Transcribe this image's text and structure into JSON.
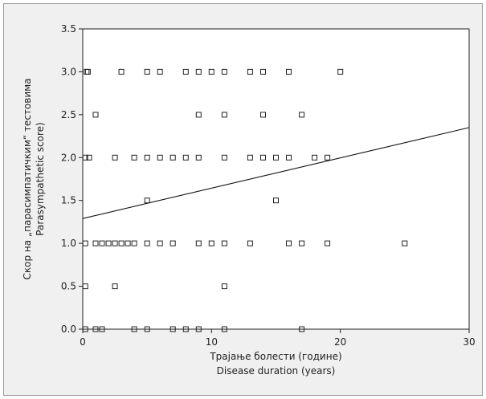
{
  "chart_data": {
    "type": "scatter",
    "title": "",
    "xlabel_lines": [
      "Трајање болести (године)",
      "Disease duration (years)"
    ],
    "ylabel_lines": [
      "Скор на „парасимпатичким“ тестовима",
      "Parasympathetic score)"
    ],
    "xlim": [
      0,
      30
    ],
    "ylim": [
      0,
      3.5
    ],
    "x_ticks": [
      0,
      10,
      20,
      30
    ],
    "x_tick_labels": [
      "0",
      "10",
      "20",
      "30"
    ],
    "y_ticks": [
      0,
      0.5,
      1.0,
      1.5,
      2.0,
      2.5,
      3.0,
      3.5
    ],
    "y_tick_labels": [
      "0.0",
      "0.5",
      "1.0",
      "1.5",
      "2.0",
      "2.5",
      "3.0",
      "3.5"
    ],
    "grid": false,
    "marker": "hollow-square",
    "colors": {
      "marker": "#222222",
      "line": "#111111",
      "background": "#f0f0f0",
      "plot_area": "#ffffff"
    },
    "regression_line": {
      "x": [
        0,
        30
      ],
      "y": [
        1.29,
        2.35
      ]
    },
    "points": [
      {
        "x": 0.3,
        "y": 3.0
      },
      {
        "x": 0.4,
        "y": 3.0
      },
      {
        "x": 3.0,
        "y": 3.0
      },
      {
        "x": 5.0,
        "y": 3.0
      },
      {
        "x": 6.0,
        "y": 3.0
      },
      {
        "x": 8.0,
        "y": 3.0
      },
      {
        "x": 9.0,
        "y": 3.0
      },
      {
        "x": 10.0,
        "y": 3.0
      },
      {
        "x": 11.0,
        "y": 3.0
      },
      {
        "x": 13.0,
        "y": 3.0
      },
      {
        "x": 14.0,
        "y": 3.0
      },
      {
        "x": 16.0,
        "y": 3.0
      },
      {
        "x": 20.0,
        "y": 3.0
      },
      {
        "x": 1.0,
        "y": 2.5
      },
      {
        "x": 9.0,
        "y": 2.5
      },
      {
        "x": 11.0,
        "y": 2.5
      },
      {
        "x": 14.0,
        "y": 2.5
      },
      {
        "x": 17.0,
        "y": 2.5
      },
      {
        "x": 0.2,
        "y": 2.0
      },
      {
        "x": 0.5,
        "y": 2.0
      },
      {
        "x": 2.5,
        "y": 2.0
      },
      {
        "x": 4.0,
        "y": 2.0
      },
      {
        "x": 5.0,
        "y": 2.0
      },
      {
        "x": 6.0,
        "y": 2.0
      },
      {
        "x": 7.0,
        "y": 2.0
      },
      {
        "x": 8.0,
        "y": 2.0
      },
      {
        "x": 9.0,
        "y": 2.0
      },
      {
        "x": 11.0,
        "y": 2.0
      },
      {
        "x": 13.0,
        "y": 2.0
      },
      {
        "x": 14.0,
        "y": 2.0
      },
      {
        "x": 15.0,
        "y": 2.0
      },
      {
        "x": 16.0,
        "y": 2.0
      },
      {
        "x": 18.0,
        "y": 2.0
      },
      {
        "x": 19.0,
        "y": 2.0
      },
      {
        "x": 5.0,
        "y": 1.5
      },
      {
        "x": 15.0,
        "y": 1.5
      },
      {
        "x": 0.2,
        "y": 1.0
      },
      {
        "x": 1.0,
        "y": 1.0
      },
      {
        "x": 1.5,
        "y": 1.0
      },
      {
        "x": 2.0,
        "y": 1.0
      },
      {
        "x": 2.5,
        "y": 1.0
      },
      {
        "x": 3.0,
        "y": 1.0
      },
      {
        "x": 3.5,
        "y": 1.0
      },
      {
        "x": 4.0,
        "y": 1.0
      },
      {
        "x": 5.0,
        "y": 1.0
      },
      {
        "x": 6.0,
        "y": 1.0
      },
      {
        "x": 7.0,
        "y": 1.0
      },
      {
        "x": 9.0,
        "y": 1.0
      },
      {
        "x": 10.0,
        "y": 1.0
      },
      {
        "x": 11.0,
        "y": 1.0
      },
      {
        "x": 13.0,
        "y": 1.0
      },
      {
        "x": 16.0,
        "y": 1.0
      },
      {
        "x": 17.0,
        "y": 1.0
      },
      {
        "x": 19.0,
        "y": 1.0
      },
      {
        "x": 25.0,
        "y": 1.0
      },
      {
        "x": 0.2,
        "y": 0.5
      },
      {
        "x": 2.5,
        "y": 0.5
      },
      {
        "x": 11.0,
        "y": 0.5
      },
      {
        "x": 0.2,
        "y": 0.0
      },
      {
        "x": 1.0,
        "y": 0.0
      },
      {
        "x": 1.5,
        "y": 0.0
      },
      {
        "x": 4.0,
        "y": 0.0
      },
      {
        "x": 5.0,
        "y": 0.0
      },
      {
        "x": 7.0,
        "y": 0.0
      },
      {
        "x": 8.0,
        "y": 0.0
      },
      {
        "x": 9.0,
        "y": 0.0
      },
      {
        "x": 11.0,
        "y": 0.0
      },
      {
        "x": 17.0,
        "y": 0.0
      }
    ]
  }
}
